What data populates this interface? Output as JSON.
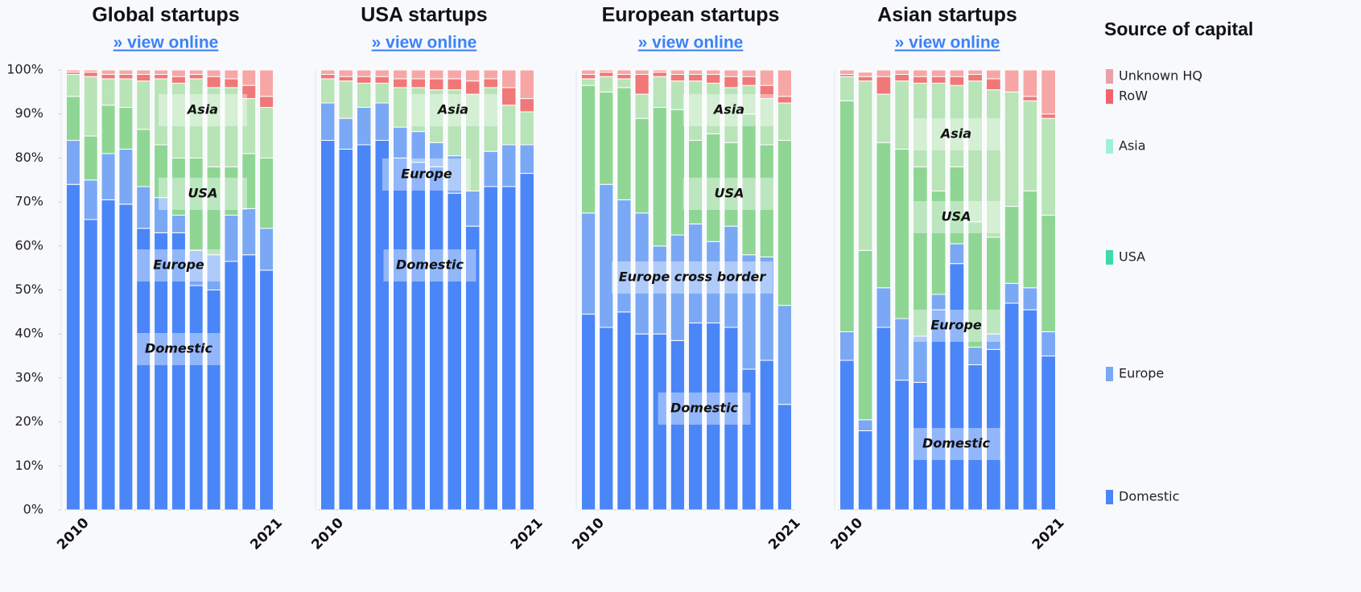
{
  "legend": {
    "title": "Source of capital",
    "items": [
      {
        "name": "Unknown HQ",
        "color": "#e8a0a8",
        "bar_color": "#f7a6a6"
      },
      {
        "name": "RoW",
        "color": "#f06470",
        "bar_color": "#f07878"
      },
      {
        "name": "Asia",
        "color": "#a0f0d8",
        "bar_color": "#b8e4b8"
      },
      {
        "name": "USA",
        "color": "#3ddba8",
        "bar_color": "#8fd694"
      },
      {
        "name": "Europe",
        "color": "#7aa8f5",
        "bar_color": "#7aa8f5"
      },
      {
        "name": "Domestic",
        "color": "#4a86f7",
        "bar_color": "#4a86f7"
      }
    ]
  },
  "chart_data": [
    {
      "type": "bar",
      "stacked": true,
      "title": "Global startups",
      "link": "» view online",
      "categories": [
        "2010",
        null,
        null,
        null,
        null,
        null,
        null,
        null,
        null,
        null,
        null,
        "2021"
      ],
      "ylim": [
        0,
        100
      ],
      "yticks": [
        {
          "value": 0,
          "label": "0%"
        },
        {
          "value": 10,
          "label": "10%"
        },
        {
          "value": 20,
          "label": "20%"
        },
        {
          "value": 30,
          "label": "30%"
        },
        {
          "value": 40,
          "label": "40%"
        },
        {
          "value": 50,
          "label": "50%"
        },
        {
          "value": 60,
          "label": "60%"
        },
        {
          "value": 70,
          "label": "70%"
        },
        {
          "value": 80,
          "label": "80%"
        },
        {
          "value": 90,
          "label": "90%"
        },
        {
          "value": 100,
          "label": "100%"
        }
      ],
      "annotations": [
        "Asia",
        "USA",
        "Europe",
        "Domestic"
      ],
      "series": [
        {
          "values": [
            0.5,
            0.5,
            1,
            1,
            1,
            1,
            1.5,
            1,
            1.5,
            2,
            3.5,
            6
          ]
        },
        {
          "values": [
            0.5,
            1,
            1,
            1,
            1.5,
            1,
            1.5,
            1,
            2.5,
            2,
            3,
            2.5
          ]
        },
        {
          "values": [
            5,
            13.5,
            6,
            6.5,
            11,
            15,
            17,
            18,
            18,
            18,
            12.5,
            11.5
          ]
        },
        {
          "values": [
            10,
            10,
            11,
            9.5,
            13,
            12,
            13,
            21,
            20,
            11,
            12.5,
            16
          ]
        },
        {
          "values": [
            10,
            9,
            10.5,
            12.5,
            9.5,
            8,
            4,
            8,
            8,
            10.5,
            10.5,
            9.5
          ]
        },
        {
          "values": [
            74,
            66,
            70.5,
            69.5,
            64,
            63,
            63,
            51,
            50,
            56.5,
            58,
            54.5
          ]
        }
      ]
    },
    {
      "type": "bar",
      "stacked": true,
      "title": "USA startups",
      "link": "» view online",
      "categories": [
        "2010",
        null,
        null,
        null,
        null,
        null,
        null,
        null,
        null,
        null,
        null,
        "2021"
      ],
      "ylim": [
        0,
        100
      ],
      "annotations": [
        "Asia",
        "Europe",
        "Domestic"
      ],
      "series": [
        {
          "values": [
            1,
            1.5,
            1.5,
            1.5,
            2,
            2,
            2,
            2,
            2.5,
            2,
            4,
            6.5
          ]
        },
        {
          "values": [
            1,
            1,
            1.5,
            1.5,
            2,
            2,
            2.5,
            2.5,
            3,
            2,
            4,
            3
          ]
        },
        {
          "values": [
            5.5,
            8.5,
            5.5,
            4.5,
            9,
            10,
            12,
            15,
            22,
            14.5,
            9,
            7.5
          ]
        },
        {
          "values": [
            0,
            0,
            0,
            0,
            0,
            0,
            0,
            0,
            0,
            0,
            0,
            0
          ]
        },
        {
          "values": [
            8.5,
            7,
            8.5,
            8.5,
            7,
            7,
            5.5,
            8.5,
            8,
            8,
            9.5,
            6.5
          ]
        },
        {
          "values": [
            84,
            82,
            83,
            84,
            80,
            79,
            78,
            72,
            64.5,
            73.5,
            73.5,
            76.5
          ]
        }
      ]
    },
    {
      "type": "bar",
      "stacked": true,
      "title": "European startups",
      "link": "» view online",
      "categories": [
        "2010",
        null,
        null,
        null,
        null,
        null,
        null,
        null,
        null,
        null,
        null,
        "2021"
      ],
      "ylim": [
        0,
        100
      ],
      "annotations": [
        "Asia",
        "USA",
        "Europe cross border",
        "Domestic"
      ],
      "series": [
        {
          "values": [
            1,
            0.5,
            1,
            1,
            0.5,
            1,
            1,
            1,
            1.5,
            1.5,
            3.5,
            6
          ]
        },
        {
          "values": [
            1,
            1,
            1,
            4.5,
            1,
            1.5,
            1.5,
            2,
            2.5,
            2,
            3,
            1.5
          ]
        },
        {
          "values": [
            1.5,
            3.5,
            2,
            5.5,
            7,
            6.5,
            13.5,
            11.5,
            12.5,
            6.5,
            10.5,
            8.5
          ]
        },
        {
          "values": [
            29,
            21,
            25.5,
            21.5,
            31.5,
            28.5,
            19,
            24.5,
            19,
            32,
            25.5,
            37.5
          ]
        },
        {
          "values": [
            23,
            32.5,
            25.5,
            27.5,
            20,
            24,
            22.5,
            18.5,
            23,
            26,
            23.5,
            22.5
          ]
        },
        {
          "values": [
            44.5,
            41.5,
            45,
            40,
            40,
            38.5,
            42.5,
            42.5,
            41.5,
            32,
            34,
            24
          ]
        }
      ]
    },
    {
      "type": "bar",
      "stacked": true,
      "title": "Asian startups",
      "link": "» view online",
      "categories": [
        "2010",
        null,
        null,
        null,
        null,
        null,
        null,
        null,
        null,
        null,
        null,
        "2021"
      ],
      "ylim": [
        0,
        100
      ],
      "annotations": [
        "Asia",
        "USA",
        "Europe",
        "Domestic"
      ],
      "series": [
        {
          "values": [
            1,
            1,
            1.5,
            1,
            1.5,
            1.5,
            1.5,
            1,
            2,
            5,
            6,
            10
          ]
        },
        {
          "values": [
            0.5,
            1,
            4,
            1.5,
            1.5,
            1.5,
            2,
            1.5,
            2.5,
            0,
            1,
            1
          ]
        },
        {
          "values": [
            5.5,
            38.5,
            11,
            15.5,
            19,
            24.5,
            18.5,
            32,
            33.5,
            26,
            20.5,
            22
          ]
        },
        {
          "values": [
            52.5,
            38.5,
            33,
            38.5,
            38.5,
            23.5,
            17.5,
            28.5,
            22,
            17.5,
            22,
            26.5
          ]
        },
        {
          "values": [
            6.5,
            2.5,
            9,
            14,
            10.5,
            3.5,
            4.5,
            4,
            3.5,
            4.5,
            5,
            5.5
          ]
        },
        {
          "values": [
            34,
            18,
            41.5,
            29.5,
            29,
            45.5,
            56,
            33,
            36.5,
            47,
            45.5,
            35
          ]
        }
      ]
    }
  ]
}
